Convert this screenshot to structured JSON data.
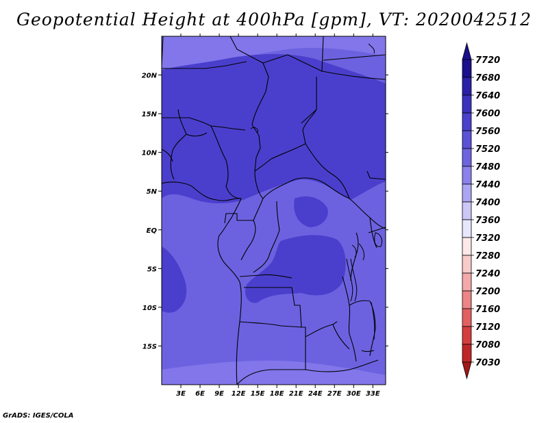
{
  "title": "Geopotential Height at 400hPa [gpm], VT: 2020042512",
  "credit": "GrADS: IGES/COLA",
  "map": {
    "lon_range": [
      0,
      35
    ],
    "lat_range": [
      -20,
      25
    ],
    "lon_ticks": [
      {
        "value": 3,
        "label": "3E"
      },
      {
        "value": 6,
        "label": "6E"
      },
      {
        "value": 9,
        "label": "9E"
      },
      {
        "value": 12,
        "label": "12E"
      },
      {
        "value": 15,
        "label": "15E"
      },
      {
        "value": 18,
        "label": "18E"
      },
      {
        "value": 21,
        "label": "21E"
      },
      {
        "value": 24,
        "label": "24E"
      },
      {
        "value": 27,
        "label": "27E"
      },
      {
        "value": 30,
        "label": "30E"
      },
      {
        "value": 33,
        "label": "33E"
      }
    ],
    "lat_ticks": [
      {
        "value": 20,
        "label": "20N"
      },
      {
        "value": 15,
        "label": "15N"
      },
      {
        "value": 10,
        "label": "10N"
      },
      {
        "value": 5,
        "label": "5N"
      },
      {
        "value": 0,
        "label": "EQ"
      },
      {
        "value": -5,
        "label": "5S"
      },
      {
        "value": -10,
        "label": "10S"
      },
      {
        "value": -15,
        "label": "15S"
      }
    ],
    "fill_colors": {
      "lt_7560": "#5a50d8",
      "7560_7600": "#6c62e0",
      "7600_7640": "#4a3fcc",
      "7640_7680": "#8276ea"
    }
  },
  "colorbar": {
    "levels": [
      "7720",
      "7680",
      "7640",
      "7600",
      "7560",
      "7520",
      "7480",
      "7440",
      "7400",
      "7360",
      "7320",
      "7280",
      "7240",
      "7200",
      "7160",
      "7120",
      "7080",
      "7030"
    ],
    "colors": [
      "#1a0f8c",
      "#2a1fa8",
      "#3b31bd",
      "#4a40cd",
      "#5a51d8",
      "#6d64e0",
      "#8a82ea",
      "#aba6f2",
      "#cbc8f8",
      "#e7e6fc",
      "#fce8e8",
      "#f8cbcb",
      "#f3a9a9",
      "#ec8585",
      "#e36060",
      "#d63e3e",
      "#c02626",
      "#a01818"
    ]
  }
}
